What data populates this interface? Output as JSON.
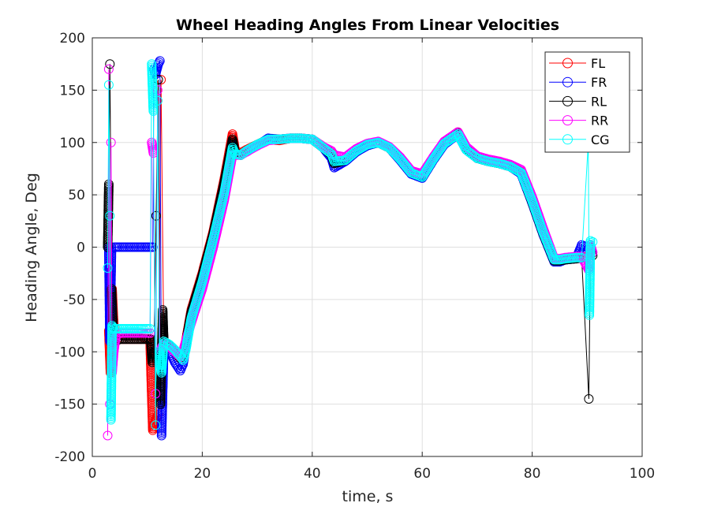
{
  "chart_data": {
    "type": "line",
    "title": "Wheel Heading Angles From Linear Velocities",
    "xlabel": "time, s",
    "ylabel": "Heading Angle, Deg",
    "xlim": [
      0,
      100
    ],
    "ylim": [
      -200,
      200
    ],
    "xticks": [
      0,
      20,
      40,
      60,
      80,
      100
    ],
    "yticks": [
      -200,
      -150,
      -100,
      -50,
      0,
      50,
      100,
      150,
      200
    ],
    "grid": true,
    "legend_position": "top-right",
    "series": [
      {
        "name": "FL",
        "color": "#ff0000",
        "x": [
          3.0,
          3.3,
          3.6,
          4.0,
          5,
          7,
          9,
          10.5,
          11.0,
          11.5,
          12.0,
          12.5,
          13,
          14,
          15,
          16,
          16.5,
          17,
          18,
          20,
          22,
          24,
          25.5,
          26,
          27,
          28,
          30,
          32,
          34,
          36,
          38,
          40,
          42,
          43.5,
          44,
          46,
          48,
          50,
          52,
          54,
          56,
          58,
          60,
          62,
          64,
          66.5,
          68,
          70,
          72,
          74,
          76,
          78,
          80,
          82,
          84,
          85,
          86,
          88,
          89,
          90,
          90.5
        ],
        "y": [
          -80,
          -120,
          -40,
          -85,
          -88,
          -88,
          -88,
          -88,
          -175,
          -165,
          -160,
          160,
          -92,
          -95,
          -100,
          -105,
          -100,
          -90,
          -60,
          -25,
          15,
          65,
          108,
          92,
          90,
          93,
          98,
          103,
          102,
          104,
          104,
          103,
          96,
          90,
          82,
          83,
          92,
          98,
          100,
          95,
          85,
          72,
          68,
          85,
          100,
          110,
          95,
          86,
          83,
          81,
          78,
          72,
          45,
          15,
          -12,
          -12,
          -11,
          -10,
          -10,
          -9,
          -8
        ]
      },
      {
        "name": "FR",
        "color": "#0000ff",
        "x": [
          3.0,
          3.2,
          3.5,
          4,
          6,
          8,
          10,
          11,
          11.2,
          11.5,
          12.0,
          12.3,
          12.6,
          13,
          14,
          15,
          16,
          16.5,
          17,
          18,
          20,
          22,
          24,
          25.5,
          26,
          27,
          28,
          30,
          32,
          34,
          36,
          38,
          40,
          42,
          43.5,
          44,
          46,
          48,
          50,
          52,
          54,
          56,
          58,
          60,
          62,
          64,
          66.5,
          68,
          70,
          72,
          74,
          76,
          78,
          80,
          82,
          84,
          85,
          86,
          88,
          89,
          90,
          90.5
        ],
        "y": [
          0,
          -90,
          0,
          0,
          0,
          0,
          0,
          0,
          170,
          165,
          175,
          178,
          -180,
          -95,
          -98,
          -110,
          -118,
          -112,
          -95,
          -65,
          -30,
          10,
          55,
          98,
          90,
          88,
          92,
          97,
          104,
          103,
          104,
          104,
          103,
          95,
          85,
          76,
          82,
          91,
          97,
          100,
          95,
          83,
          70,
          66,
          83,
          98,
          108,
          93,
          85,
          82,
          80,
          77,
          70,
          42,
          12,
          -14,
          -14,
          -12,
          -11,
          2,
          0,
          -3
        ]
      },
      {
        "name": "RL",
        "color": "#000000",
        "x": [
          2.8,
          3.0,
          3.2,
          3.5,
          3.8,
          4.2,
          5,
          7,
          9,
          10.6,
          10.9,
          11.2,
          11.6,
          12.0,
          12.4,
          12.8,
          13,
          14,
          15,
          16,
          16.5,
          17,
          18,
          20,
          22,
          24,
          25.5,
          26,
          27,
          28,
          30,
          32,
          34,
          36,
          38,
          40,
          42,
          43.5,
          44,
          46,
          48,
          50,
          52,
          54,
          56,
          58,
          60,
          62,
          64,
          66.5,
          68,
          70,
          72,
          74,
          76,
          78,
          80,
          82,
          84,
          85,
          86,
          88,
          89,
          90.3,
          90.6,
          91
        ],
        "y": [
          0,
          60,
          175,
          -40,
          -80,
          -90,
          -88,
          -88,
          -88,
          -88,
          -110,
          -100,
          30,
          160,
          -150,
          -60,
          -90,
          -94,
          -100,
          -106,
          -102,
          -92,
          -62,
          -27,
          13,
          62,
          103,
          90,
          88,
          92,
          98,
          103,
          103,
          104,
          104,
          103,
          95,
          88,
          80,
          83,
          92,
          98,
          100,
          95,
          84,
          71,
          67,
          84,
          99,
          109,
          94,
          85,
          82,
          80,
          77,
          71,
          43,
          13,
          -13,
          -13,
          -12,
          -11,
          -10,
          -145,
          0,
          -8
        ]
      },
      {
        "name": "RR",
        "color": "#ff00ff",
        "x": [
          2.8,
          3.0,
          3.2,
          3.4,
          3.6,
          3.9,
          4.3,
          5,
          7,
          9,
          10.5,
          10.8,
          11.1,
          11.5,
          11.9,
          12.3,
          12.7,
          13,
          14,
          15,
          16,
          16.5,
          17,
          18,
          20,
          22,
          24,
          25.5,
          26,
          27,
          28,
          30,
          32,
          34,
          36,
          38,
          40,
          42,
          43.5,
          44,
          46,
          48,
          50,
          52,
          54,
          56,
          58,
          60,
          62,
          64,
          66.5,
          68,
          70,
          72,
          74,
          76,
          78,
          80,
          82,
          84,
          85,
          86,
          88,
          89,
          90.3,
          90.6,
          91
        ],
        "y": [
          -180,
          170,
          -150,
          100,
          -120,
          -100,
          -85,
          -82,
          -82,
          -82,
          -82,
          100,
          90,
          -140,
          150,
          -100,
          -95,
          -92,
          -95,
          -100,
          -105,
          -100,
          -90,
          -72,
          -40,
          0,
          45,
          88,
          88,
          88,
          91,
          97,
          102,
          103,
          104,
          104,
          103,
          96,
          92,
          88,
          86,
          94,
          99,
          101,
          96,
          86,
          73,
          70,
          86,
          101,
          110,
          96,
          87,
          84,
          82,
          79,
          74,
          48,
          18,
          -11,
          -11,
          -10,
          -9,
          -9,
          -22,
          2,
          -5
        ]
      },
      {
        "name": "CG",
        "color": "#00ffff",
        "x": [
          2.8,
          3.0,
          3.2,
          3.4,
          3.6,
          3.9,
          4.3,
          5,
          7,
          9,
          10.5,
          10.8,
          11.1,
          11.5,
          11.9,
          12.2,
          12.6,
          13,
          14,
          15,
          16,
          16.5,
          17,
          18,
          20,
          22,
          24,
          25.5,
          26,
          27,
          28,
          30,
          32,
          34,
          36,
          38,
          40,
          42,
          43.5,
          44,
          46,
          48,
          50,
          52,
          54,
          56,
          58,
          60,
          62,
          64,
          66.5,
          68,
          70,
          72,
          74,
          76,
          78,
          80,
          82,
          84,
          85,
          86,
          88,
          89,
          90.2,
          90.4,
          90.6,
          91
        ],
        "y": [
          -20,
          155,
          30,
          -165,
          -75,
          -78,
          -78,
          -78,
          -78,
          -78,
          -78,
          175,
          130,
          -170,
          140,
          -100,
          -120,
          -90,
          -93,
          -98,
          -104,
          -108,
          -98,
          -68,
          -33,
          8,
          52,
          95,
          89,
          88,
          92,
          98,
          103,
          103,
          104,
          104,
          103,
          95,
          89,
          82,
          83,
          92,
          98,
          100,
          95,
          84,
          71,
          67,
          84,
          99,
          108,
          93,
          85,
          82,
          80,
          77,
          71,
          44,
          14,
          -12,
          -12,
          -11,
          -10,
          -10,
          100,
          -65,
          6,
          5
        ]
      }
    ]
  }
}
